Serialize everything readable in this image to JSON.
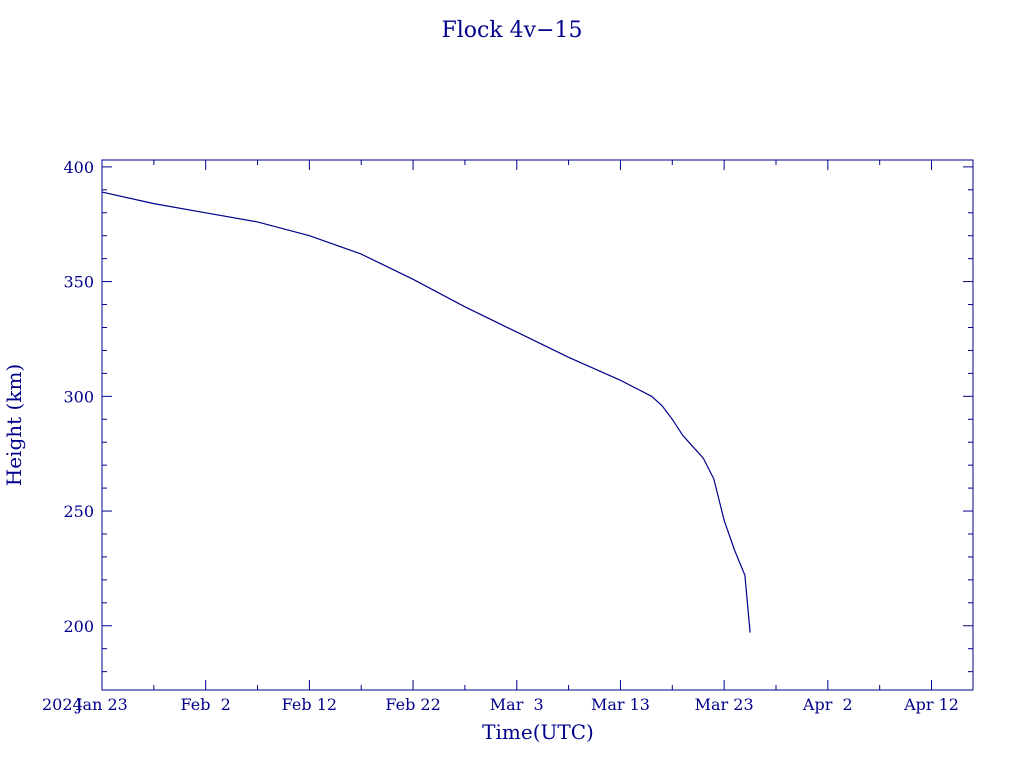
{
  "chart_data": {
    "type": "line",
    "title": "Flock 4v−15",
    "xlabel": "Time(UTC)",
    "ylabel": "Height (km)",
    "year_label": "2024",
    "xlim": [
      "2024-01-23",
      "2024-04-16"
    ],
    "ylim": [
      172,
      403
    ],
    "x_ticks": [
      {
        "date": "2024-01-23",
        "label": "Jan 23"
      },
      {
        "date": "2024-02-02",
        "label": "Feb  2"
      },
      {
        "date": "2024-02-12",
        "label": "Feb 12"
      },
      {
        "date": "2024-02-22",
        "label": "Feb 22"
      },
      {
        "date": "2024-03-03",
        "label": "Mar  3"
      },
      {
        "date": "2024-03-13",
        "label": "Mar 13"
      },
      {
        "date": "2024-03-23",
        "label": "Mar 23"
      },
      {
        "date": "2024-04-02",
        "label": "Apr  2"
      },
      {
        "date": "2024-04-12",
        "label": "Apr 12"
      }
    ],
    "y_ticks": [
      200,
      250,
      300,
      350,
      400
    ],
    "grid": false,
    "color": "#00008b",
    "series": [
      {
        "x": [
          "2024-01-23",
          "2024-01-28",
          "2024-02-02",
          "2024-02-07",
          "2024-02-12",
          "2024-02-17",
          "2024-02-22",
          "2024-02-27",
          "2024-03-03",
          "2024-03-08",
          "2024-03-13",
          "2024-03-16",
          "2024-03-17",
          "2024-03-18",
          "2024-03-19",
          "2024-03-20",
          "2024-03-21",
          "2024-03-22",
          "2024-03-23",
          "2024-03-24",
          "2024-03-25",
          "2024-03-25T12:00"
        ],
        "y": [
          389,
          384,
          380,
          376,
          370,
          362,
          351,
          339,
          328,
          317,
          307,
          300,
          296,
          290,
          283,
          278,
          273,
          264,
          246,
          233,
          222,
          197
        ]
      }
    ]
  }
}
